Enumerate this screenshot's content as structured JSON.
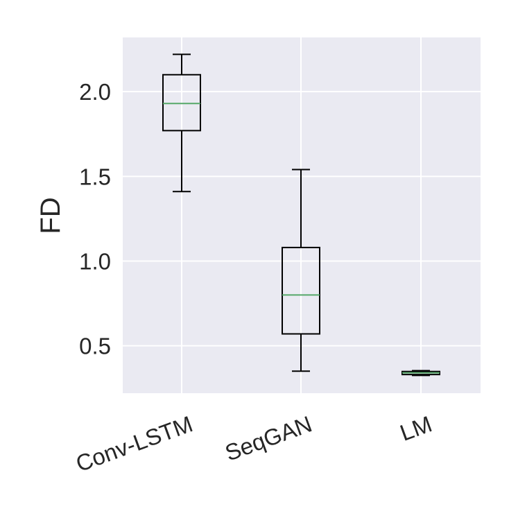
{
  "chart_data": {
    "type": "box",
    "title": "",
    "xlabel": "",
    "ylabel": "FD",
    "ylim": [
      0.22,
      2.32
    ],
    "yticks": [
      0.5,
      1.0,
      1.5,
      2.0
    ],
    "ytick_labels": [
      "0.5",
      "1.0",
      "1.5",
      "2.0"
    ],
    "grid": true,
    "categories": [
      "Conv-LSTM",
      "SeqGAN",
      "LM"
    ],
    "boxes": [
      {
        "category": "Conv-LSTM",
        "whisker_low": 1.41,
        "q1": 1.77,
        "median": 1.93,
        "q3": 2.1,
        "whisker_high": 2.22
      },
      {
        "category": "SeqGAN",
        "whisker_low": 0.35,
        "q1": 0.57,
        "median": 0.8,
        "q3": 1.08,
        "whisker_high": 1.54
      },
      {
        "category": "LM",
        "whisker_low": 0.325,
        "q1": 0.33,
        "median": 0.34,
        "q3": 0.348,
        "whisker_high": 0.353
      }
    ],
    "colors": {
      "plot_background": "#eaeaf2",
      "grid": "#ffffff",
      "box_edge": "#000000",
      "median": "#55a868",
      "text": "#262626"
    }
  }
}
